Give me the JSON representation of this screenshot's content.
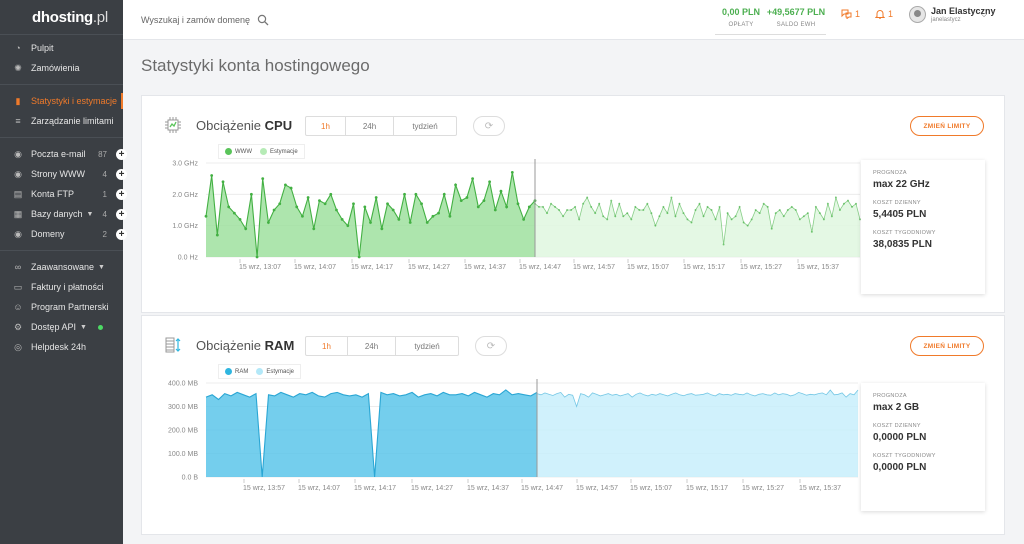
{
  "logo": {
    "brand": "dhosting",
    "suffix": ".pl"
  },
  "sidebar": {
    "group1": [
      {
        "label": "Pulpit",
        "icon": "gauge-icon"
      },
      {
        "label": "Zamówienia",
        "icon": "sun-icon"
      }
    ],
    "group2": [
      {
        "label": "Statystyki i estymacje",
        "icon": "bar-chart-icon",
        "active": true
      },
      {
        "label": "Zarządzanie limitami",
        "icon": "list-icon"
      }
    ],
    "group3": [
      {
        "label": "Poczta e-mail",
        "icon": "globe-icon",
        "count": "87"
      },
      {
        "label": "Strony WWW",
        "icon": "globe-icon",
        "count": "4"
      },
      {
        "label": "Konta FTP",
        "icon": "server-icon",
        "count": "1"
      },
      {
        "label": "Bazy danych",
        "icon": "database-icon",
        "count": "4"
      },
      {
        "label": "Domeny",
        "icon": "globe-icon",
        "count": "2"
      }
    ],
    "group4": [
      {
        "label": "Zaawansowane",
        "icon": "link-icon"
      },
      {
        "label": "Faktury i płatności",
        "icon": "wallet-icon"
      },
      {
        "label": "Program Partnerski",
        "icon": "users-icon"
      },
      {
        "label": "Dostęp API",
        "icon": "gear-icon"
      },
      {
        "label": "Helpdesk 24h",
        "icon": "lifebuoy-icon"
      }
    ]
  },
  "topbar": {
    "search_placeholder": "Wyszukaj i zamów domenę",
    "balances": [
      {
        "value": "0,00 PLN",
        "label": "OPŁATY"
      },
      {
        "value": "+49,5677 PLN",
        "label": "SALDO EWH"
      }
    ],
    "messages_count": "1",
    "notifications_count": "1",
    "user": {
      "name": "Jan Elastyczny",
      "login": "janelastycz"
    }
  },
  "page_title": "Statystyki konta hostingowego",
  "cpu": {
    "title_prefix": "Obciążenie",
    "title_bold": "CPU",
    "tabs": [
      "1h",
      "24h",
      "tydzień"
    ],
    "active_tab": "1h",
    "limit_button": "ZMIEŃ LIMITY",
    "legend": [
      {
        "name": "WWW",
        "color": "#5ac45a"
      },
      {
        "name": "Estymacje",
        "color": "#b6ebb6"
      }
    ],
    "forecast_label": "PROGNOZA",
    "forecast_value": "max 22 GHz",
    "daily_label": "KOSZT DZIENNY",
    "daily_value": "5,4405 PLN",
    "weekly_label": "KOSZT TYGODNIOWY",
    "weekly_value": "38,0835 PLN"
  },
  "ram": {
    "title_prefix": "Obciążenie",
    "title_bold": "RAM",
    "tabs": [
      "1h",
      "24h",
      "tydzień"
    ],
    "active_tab": "1h",
    "limit_button": "ZMIEŃ LIMITY",
    "legend": [
      {
        "name": "RAM",
        "color": "#2fb6e0"
      },
      {
        "name": "Estymacje",
        "color": "#b3e8f8"
      }
    ],
    "forecast_label": "PROGNOZA",
    "forecast_value": "max 2 GB",
    "daily_label": "KOSZT DZIENNY",
    "daily_value": "0,0000 PLN",
    "weekly_label": "KOSZT TYGODNIOWY",
    "weekly_value": "0,0000 PLN"
  },
  "chart_data": [
    {
      "type": "area",
      "title": "Obciążenie CPU",
      "ylim": [
        0,
        3
      ],
      "y_ticks": [
        "0.0 Hz",
        "1.0 GHz",
        "2.0 GHz",
        "3.0 GHz"
      ],
      "x_ticks": [
        "15 wrz, 13:07",
        "15 wrz, 14:07",
        "15 wrz, 14:17",
        "15 wrz, 14:27",
        "15 wrz, 14:37",
        "15 wrz, 14:47",
        "15 wrz, 14:57",
        "15 wrz, 15:07",
        "15 wrz, 15:17",
        "15 wrz, 15:27",
        "15 wrz, 15:37"
      ],
      "grid": true,
      "legend_position": "top-left",
      "series": [
        {
          "name": "WWW",
          "values": [
            1.3,
            2.6,
            0.7,
            2.4,
            1.6,
            1.4,
            1.2,
            0.9,
            2.0,
            0.0,
            2.5,
            1.1,
            1.5,
            1.7,
            2.3,
            2.2,
            1.6,
            1.3,
            1.9,
            0.9,
            1.8,
            1.7,
            2.0,
            1.5,
            1.2,
            1.0,
            1.7,
            0.0,
            1.6,
            1.1,
            1.9,
            0.9,
            1.7,
            1.5,
            1.2,
            2.0,
            1.1,
            2.0,
            1.7,
            1.1,
            1.3,
            1.4,
            2.0,
            1.3,
            2.3,
            1.8,
            1.9,
            2.5,
            1.6,
            1.8,
            2.4,
            1.5,
            2.1,
            1.6,
            2.7,
            1.7,
            1.2,
            1.6,
            1.8
          ]
        },
        {
          "name": "Estymacje",
          "values": [
            1.7,
            1.6,
            1.6,
            1.4,
            1.7,
            1.6,
            1.5,
            1.3,
            1.5,
            1.5,
            1.6,
            1.2,
            1.7,
            1.9,
            1.6,
            1.4,
            1.7,
            1.3,
            1.2,
            1.8,
            1.3,
            1.7,
            1.3,
            1.4,
            1.2,
            1.6,
            1.5,
            1.5,
            1.7,
            1.4,
            1.0,
            1.3,
            1.6,
            1.4,
            1.9,
            1.3,
            1.7,
            1.4,
            1.2,
            1.1,
            1.5,
            1.7,
            1.3,
            1.6,
            1.5,
            1.2,
            1.6,
            0.4,
            1.4,
            1.2,
            1.3,
            1.6,
            1.1,
            1.0,
            1.2,
            1.5,
            1.4,
            1.7,
            1.6,
            0.9,
            1.4,
            1.5,
            1.3,
            1.5,
            1.6,
            1.5,
            1.2,
            1.3,
            1.4,
            0.8,
            1.6,
            1.4,
            1.2,
            1.7,
            1.3,
            1.9,
            1.5,
            1.7,
            1.8,
            1.6,
            1.7,
            1.2
          ]
        }
      ]
    },
    {
      "type": "area",
      "title": "Obciążenie RAM",
      "ylim": [
        0,
        400
      ],
      "y_ticks": [
        "0.0 B",
        "100.0 MB",
        "200.0 MB",
        "300.0 MB",
        "400.0 MB"
      ],
      "x_ticks": [
        "15 wrz, 13:57",
        "15 wrz, 14:07",
        "15 wrz, 14:17",
        "15 wrz, 14:27",
        "15 wrz, 14:37",
        "15 wrz, 14:47",
        "15 wrz, 14:57",
        "15 wrz, 15:07",
        "15 wrz, 15:17",
        "15 wrz, 15:27",
        "15 wrz, 15:37"
      ],
      "grid": true,
      "legend_position": "top-left",
      "series": [
        {
          "name": "RAM",
          "values": [
            340,
            350,
            330,
            355,
            345,
            360,
            350,
            340,
            355,
            0,
            350,
            345,
            360,
            350,
            340,
            355,
            350,
            360,
            345,
            340,
            355,
            360,
            350,
            345,
            350,
            340,
            355,
            0,
            360,
            350,
            355,
            345,
            350,
            360,
            340,
            350,
            355,
            345,
            360,
            350,
            350,
            355,
            345,
            360,
            350,
            340,
            355,
            350,
            370,
            350,
            355,
            350,
            345,
            360
          ]
        },
        {
          "name": "Estymacje",
          "values": [
            355,
            350,
            358,
            352,
            347,
            355,
            360,
            340,
            352,
            348,
            300,
            355,
            350,
            340,
            358,
            352,
            345,
            350,
            355,
            348,
            352,
            345,
            350,
            355,
            340,
            352,
            358,
            350,
            345,
            352,
            348,
            355,
            350,
            345,
            352,
            358,
            350,
            346,
            352,
            355,
            348,
            350,
            352,
            358,
            350,
            345,
            355,
            350,
            352,
            348,
            355,
            352,
            350,
            358,
            350,
            345,
            352,
            355,
            350,
            348,
            358,
            350,
            355,
            352,
            345,
            350,
            360,
            355,
            348,
            352,
            350,
            355,
            358,
            350,
            370,
            350,
            352,
            358,
            340,
            355,
            350,
            370
          ]
        }
      ]
    }
  ]
}
